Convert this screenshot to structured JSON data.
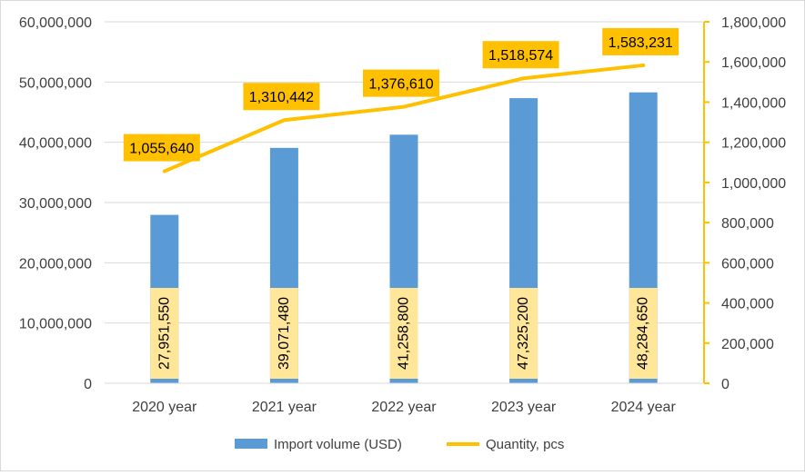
{
  "colors": {
    "bar": "#5b9bd5",
    "line": "#ffc000",
    "bar_label_fill": "#ffe699",
    "line_label_fill": "#ffc000",
    "gridline": "#d9d9d9",
    "text": "#404040"
  },
  "chart_data": {
    "type": "bar",
    "categories": [
      "2020 year",
      "2021 year",
      "2022 year",
      "2023 year",
      "2024 year"
    ],
    "series": [
      {
        "name": "Import volume (USD)",
        "type": "bar",
        "axis": "left",
        "values": [
          27951550,
          39071480,
          41258800,
          47325200,
          48284650
        ],
        "labels": [
          "27,951,550",
          "39,071,480",
          "41,258,800",
          "47,325,200",
          "48,284,650"
        ]
      },
      {
        "name": "Quantity, pcs",
        "type": "line",
        "axis": "right",
        "values": [
          1055640,
          1310442,
          1376610,
          1518574,
          1583231
        ],
        "labels": [
          "1,055,640",
          "1,310,442",
          "1,376,610",
          "1,518,574",
          "1,583,231"
        ]
      }
    ],
    "left_axis": {
      "ylim": [
        0,
        60000000
      ],
      "ticks": [
        0,
        10000000,
        20000000,
        30000000,
        40000000,
        50000000,
        60000000
      ],
      "tick_labels": [
        "0",
        "10,000,000",
        "20,000,000",
        "30,000,000",
        "40,000,000",
        "50,000,000",
        "60,000,000"
      ]
    },
    "right_axis": {
      "ylim": [
        0,
        1800000
      ],
      "ticks": [
        0,
        200000,
        400000,
        600000,
        800000,
        1000000,
        1200000,
        1400000,
        1600000,
        1800000
      ],
      "tick_labels": [
        "0",
        "200,000",
        "400,000",
        "600,000",
        "800,000",
        "1,000,000",
        "1,200,000",
        "1,400,000",
        "1,600,000",
        "1,800,000"
      ]
    },
    "grid": true,
    "legend": "bottom"
  }
}
